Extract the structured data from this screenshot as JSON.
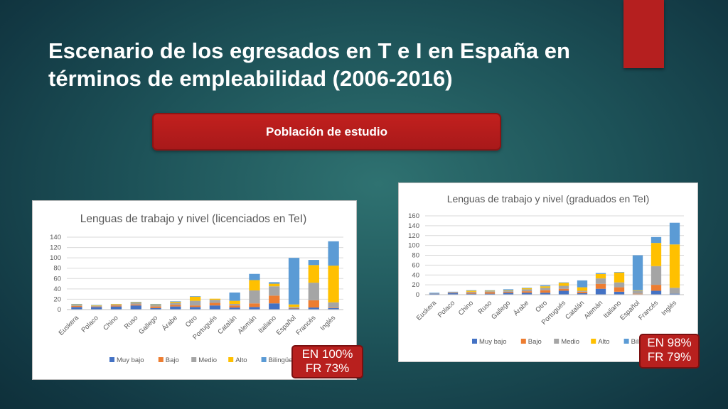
{
  "slide": {
    "title_line1": "Escenario de los egresados en T e I  en España en",
    "title_line2": "términos de empleabilidad (2006-2016)",
    "button_label": "Población de estudio"
  },
  "notes": {
    "chart1": {
      "line1": "EN 100%",
      "line2": "FR 73%"
    },
    "chart2": {
      "line1": "EN 98%",
      "line2": "FR 79%"
    }
  },
  "colors": {
    "Muy bajo": "#4472c4",
    "Bajo": "#ed7d31",
    "Medio": "#a5a5a5",
    "Alto": "#ffc000",
    "Bilingüe": "#5b9bd5",
    "accent": "#b51f1f"
  },
  "chart_data": [
    {
      "type": "bar",
      "stacked": true,
      "title": "Lenguas de trabajo y nivel (licenciados en TeI)",
      "categories": [
        "Euskera",
        "Polaco",
        "Chino",
        "Ruso",
        "Gallego",
        "Árabe",
        "Otro",
        "Portugués",
        "Catalán",
        "Alemán",
        "Italiano",
        "Español",
        "Francés",
        "Inglés"
      ],
      "series": [
        {
          "name": "Muy bajo",
          "values": [
            5,
            5,
            6,
            8,
            3,
            6,
            5,
            8,
            4,
            5,
            12,
            2,
            4,
            3
          ]
        },
        {
          "name": "Bajo",
          "values": [
            2,
            1,
            2,
            2,
            3,
            3,
            3,
            5,
            4,
            7,
            15,
            1,
            14,
            1
          ]
        },
        {
          "name": "Medio",
          "values": [
            2,
            1,
            2,
            3,
            3,
            4,
            9,
            6,
            3,
            25,
            18,
            2,
            34,
            10
          ]
        },
        {
          "name": "Alto",
          "values": [
            1,
            1,
            1,
            1,
            1,
            2,
            8,
            2,
            6,
            20,
            5,
            5,
            34,
            71
          ]
        },
        {
          "name": "Bilingüe",
          "values": [
            1,
            1,
            0,
            1,
            1,
            1,
            1,
            0,
            16,
            12,
            3,
            90,
            10,
            47
          ]
        }
      ],
      "ylim": [
        0,
        140
      ],
      "yticks": [
        0,
        20,
        40,
        60,
        80,
        100,
        120,
        140
      ],
      "grid": true,
      "legend": "bottom"
    },
    {
      "type": "bar",
      "stacked": true,
      "title": "Lenguas de trabajo y nivel (graduados en TeI)",
      "categories": [
        "Euskera",
        "Polaco",
        "Chino",
        "Ruso",
        "Gallego",
        "Árabe",
        "Otro",
        "Portugués",
        "Catalán",
        "Alemán",
        "Italiano",
        "Español",
        "Francés",
        "Inglés"
      ],
      "series": [
        {
          "name": "Muy bajo",
          "values": [
            2,
            3,
            2,
            2,
            4,
            4,
            4,
            8,
            3,
            12,
            6,
            1,
            8,
            2
          ]
        },
        {
          "name": "Bajo",
          "values": [
            0,
            1,
            2,
            3,
            2,
            3,
            5,
            4,
            3,
            10,
            9,
            1,
            12,
            0
          ]
        },
        {
          "name": "Medio",
          "values": [
            1,
            1,
            2,
            2,
            2,
            4,
            5,
            6,
            2,
            11,
            10,
            6,
            38,
            12
          ]
        },
        {
          "name": "Alto",
          "values": [
            0,
            0,
            2,
            1,
            1,
            2,
            3,
            6,
            7,
            9,
            20,
            1,
            47,
            88
          ]
        },
        {
          "name": "Bilingüe",
          "values": [
            1,
            1,
            1,
            1,
            2,
            1,
            2,
            1,
            14,
            2,
            1,
            71,
            12,
            44
          ]
        }
      ],
      "ylim": [
        0,
        160
      ],
      "yticks": [
        0,
        20,
        40,
        60,
        80,
        100,
        120,
        140,
        160
      ],
      "grid": true,
      "legend": "bottom"
    }
  ]
}
